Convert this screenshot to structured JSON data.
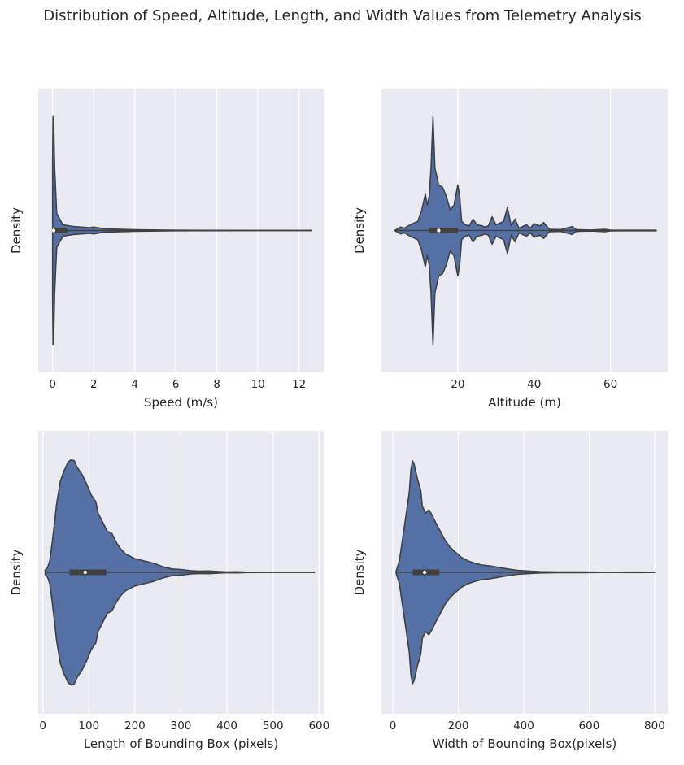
{
  "figure": {
    "title": "Distribution of Speed, Altitude, Length, and Width Values from Telemetry Analysis"
  },
  "style": {
    "background": "#EAEAF2",
    "grid": "#FFFFFF",
    "violin_fill": "#5470A4",
    "violin_edge": "#404040",
    "box": "#404040",
    "median": "#FFFFFF"
  },
  "chart_data": [
    {
      "type": "violin",
      "orientation": "horizontal",
      "xlabel": "Speed (m/s)",
      "ylabel": "Density",
      "xlim": [
        -0.7,
        13.2
      ],
      "xticks": [
        0,
        2,
        4,
        6,
        8,
        10,
        12
      ],
      "grid": true,
      "whisker_range": [
        0,
        12.6
      ],
      "box": {
        "q1": 0.05,
        "median": 0.05,
        "q3": 0.7
      },
      "density_profile": [
        [
          0.0,
          0.6
        ],
        [
          0.02,
          1.0
        ],
        [
          0.05,
          0.98
        ],
        [
          0.1,
          0.55
        ],
        [
          0.2,
          0.15
        ],
        [
          0.5,
          0.05
        ],
        [
          1.0,
          0.035
        ],
        [
          1.8,
          0.025
        ],
        [
          2.0,
          0.03
        ],
        [
          2.5,
          0.015
        ],
        [
          3.0,
          0.012
        ],
        [
          4.0,
          0.007
        ],
        [
          6.0,
          0.002
        ],
        [
          8.0,
          0.0015
        ],
        [
          10.0,
          0.001
        ],
        [
          12.6,
          0.001
        ]
      ]
    },
    {
      "type": "violin",
      "orientation": "horizontal",
      "xlabel": "Altitude (m)",
      "ylabel": "Density",
      "xlim": [
        0,
        75
      ],
      "xticks": [
        20,
        40,
        60
      ],
      "grid": true,
      "whisker_range": [
        3.5,
        72
      ],
      "box": {
        "q1": 12.5,
        "median": 15,
        "q3": 20
      },
      "density_profile": [
        [
          3.5,
          0.0
        ],
        [
          5.0,
          0.03
        ],
        [
          6.0,
          0.02
        ],
        [
          7.5,
          0.05
        ],
        [
          9.5,
          0.08
        ],
        [
          10.5,
          0.17
        ],
        [
          11.5,
          0.32
        ],
        [
          12.0,
          0.22
        ],
        [
          12.5,
          0.3
        ],
        [
          13.0,
          0.55
        ],
        [
          13.5,
          1.0
        ],
        [
          14.0,
          0.55
        ],
        [
          15.0,
          0.4
        ],
        [
          16.0,
          0.38
        ],
        [
          17.0,
          0.3
        ],
        [
          18.0,
          0.18
        ],
        [
          19.0,
          0.22
        ],
        [
          20.0,
          0.4
        ],
        [
          20.5,
          0.3
        ],
        [
          21.0,
          0.08
        ],
        [
          22.0,
          0.05
        ],
        [
          23.0,
          0.04
        ],
        [
          24.0,
          0.1
        ],
        [
          25.0,
          0.05
        ],
        [
          26.5,
          0.04
        ],
        [
          27.0,
          0.03
        ],
        [
          28.0,
          0.04
        ],
        [
          29.0,
          0.12
        ],
        [
          30.0,
          0.05
        ],
        [
          32.0,
          0.08
        ],
        [
          33.0,
          0.2
        ],
        [
          34.0,
          0.04
        ],
        [
          35.0,
          0.1
        ],
        [
          36.0,
          0.02
        ],
        [
          38.0,
          0.05
        ],
        [
          39.0,
          0.02
        ],
        [
          40.0,
          0.06
        ],
        [
          41.5,
          0.04
        ],
        [
          42.5,
          0.07
        ],
        [
          44.0,
          0.01
        ],
        [
          47.0,
          0.008
        ],
        [
          50.0,
          0.035
        ],
        [
          51.0,
          0.008
        ],
        [
          55.0,
          0.004
        ],
        [
          58.5,
          0.01
        ],
        [
          60.0,
          0.003
        ],
        [
          65.0,
          0.002
        ],
        [
          72.0,
          0.002
        ]
      ]
    },
    {
      "type": "violin",
      "orientation": "horizontal",
      "xlabel": "Length of Bounding Box (pixels)",
      "ylabel": "Density",
      "xlim": [
        -10,
        610
      ],
      "xticks": [
        0,
        100,
        200,
        300,
        400,
        500,
        600
      ],
      "grid": true,
      "whisker_range": [
        5,
        590
      ],
      "box": {
        "q1": 58,
        "median": 92,
        "q3": 138
      },
      "density_profile": [
        [
          5,
          0.02
        ],
        [
          10,
          0.04
        ],
        [
          15,
          0.1
        ],
        [
          20,
          0.25
        ],
        [
          25,
          0.42
        ],
        [
          30,
          0.6
        ],
        [
          38,
          0.8
        ],
        [
          45,
          0.88
        ],
        [
          55,
          0.97
        ],
        [
          62,
          0.99
        ],
        [
          68,
          0.98
        ],
        [
          75,
          0.92
        ],
        [
          85,
          0.86
        ],
        [
          95,
          0.78
        ],
        [
          105,
          0.68
        ],
        [
          115,
          0.62
        ],
        [
          120,
          0.52
        ],
        [
          130,
          0.44
        ],
        [
          140,
          0.36
        ],
        [
          150,
          0.34
        ],
        [
          160,
          0.26
        ],
        [
          170,
          0.2
        ],
        [
          180,
          0.16
        ],
        [
          200,
          0.12
        ],
        [
          220,
          0.1
        ],
        [
          240,
          0.08
        ],
        [
          260,
          0.05
        ],
        [
          280,
          0.03
        ],
        [
          300,
          0.025
        ],
        [
          320,
          0.015
        ],
        [
          340,
          0.01
        ],
        [
          360,
          0.012
        ],
        [
          380,
          0.008
        ],
        [
          400,
          0.003
        ],
        [
          420,
          0.005
        ],
        [
          440,
          0.002
        ],
        [
          500,
          0.001
        ],
        [
          590,
          0.001
        ]
      ]
    },
    {
      "type": "violin",
      "orientation": "horizontal",
      "xlabel": "Width of Bounding Box(pixels)",
      "ylabel": "Density",
      "xlim": [
        -35,
        840
      ],
      "xticks": [
        0,
        200,
        400,
        600,
        800
      ],
      "grid": true,
      "whisker_range": [
        10,
        800
      ],
      "box": {
        "q1": 60,
        "median": 97,
        "q3": 142
      },
      "density_profile": [
        [
          10,
          0.01
        ],
        [
          20,
          0.1
        ],
        [
          30,
          0.3
        ],
        [
          40,
          0.5
        ],
        [
          50,
          0.7
        ],
        [
          55,
          0.9
        ],
        [
          60,
          0.98
        ],
        [
          65,
          0.95
        ],
        [
          75,
          0.82
        ],
        [
          85,
          0.72
        ],
        [
          90,
          0.58
        ],
        [
          100,
          0.52
        ],
        [
          110,
          0.55
        ],
        [
          120,
          0.5
        ],
        [
          130,
          0.44
        ],
        [
          145,
          0.36
        ],
        [
          160,
          0.28
        ],
        [
          175,
          0.22
        ],
        [
          190,
          0.18
        ],
        [
          210,
          0.13
        ],
        [
          230,
          0.1
        ],
        [
          250,
          0.08
        ],
        [
          270,
          0.065
        ],
        [
          300,
          0.055
        ],
        [
          330,
          0.04
        ],
        [
          350,
          0.03
        ],
        [
          380,
          0.018
        ],
        [
          420,
          0.01
        ],
        [
          450,
          0.006
        ],
        [
          500,
          0.003
        ],
        [
          580,
          0.003
        ],
        [
          650,
          0.001
        ],
        [
          760,
          0.002
        ],
        [
          800,
          0.001
        ]
      ]
    }
  ]
}
